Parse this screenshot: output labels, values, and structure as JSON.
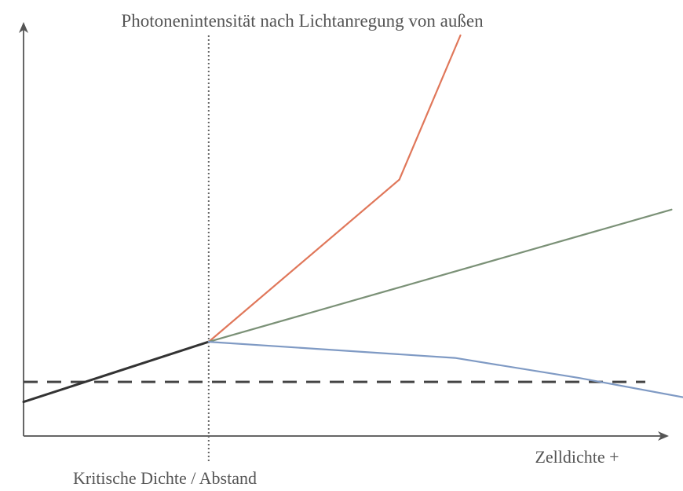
{
  "chart_data": {
    "type": "line",
    "title": "Photonenintensität nach Lichtanregung von außen",
    "xlabel": "Zelldichte +",
    "annotations": [
      {
        "text": "Kritische Dichte / Abstand",
        "x": 1.0
      }
    ],
    "x_axis": {
      "ticks": false,
      "arrow": true
    },
    "y_axis": {
      "ticks": false,
      "arrow": true
    },
    "xlim": [
      0,
      3.35
    ],
    "ylim": [
      0,
      10
    ],
    "grid": false,
    "reference_lines": {
      "vertical_dotted_x": 1.0,
      "horizontal_dashed_y": 1.35
    },
    "series": [
      {
        "color": "#333333",
        "x": [
          0,
          1.0
        ],
        "y": [
          0.85,
          2.35
        ]
      },
      {
        "color": "#e0775a",
        "x": [
          1.0,
          2.03,
          2.36
        ],
        "y": [
          2.35,
          6.4,
          10.0
        ]
      },
      {
        "color": "#7b9177",
        "x": [
          1.0,
          3.5
        ],
        "y": [
          2.35,
          5.65
        ]
      },
      {
        "color": "#7f9ac4",
        "x": [
          1.0,
          2.33,
          3.0,
          3.7
        ],
        "y": [
          2.35,
          1.95,
          1.45,
          0.85
        ]
      }
    ]
  }
}
